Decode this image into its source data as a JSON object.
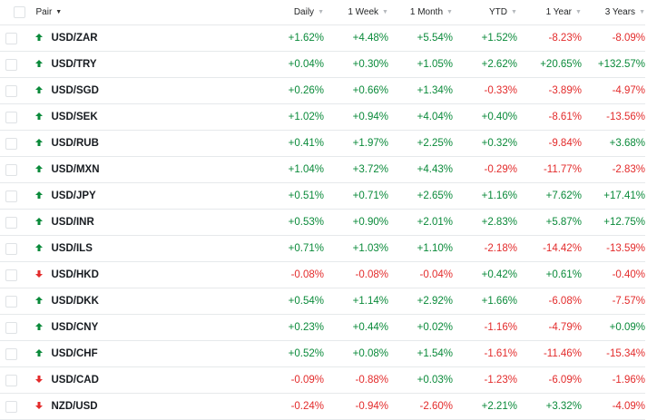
{
  "colors": {
    "positive": "#0a8a3a",
    "negative": "#e32b2b"
  },
  "header": {
    "pair": "Pair",
    "daily": "Daily",
    "week": "1 Week",
    "month": "1 Month",
    "ytd": "YTD",
    "year": "1 Year",
    "three_years": "3 Years"
  },
  "rows": [
    {
      "pair": "USD/ZAR",
      "direction": "up",
      "daily": "+1.62%",
      "week": "+4.48%",
      "month": "+5.54%",
      "ytd": "+1.52%",
      "year": "-8.23%",
      "three_years": "-8.09%"
    },
    {
      "pair": "USD/TRY",
      "direction": "up",
      "daily": "+0.04%",
      "week": "+0.30%",
      "month": "+1.05%",
      "ytd": "+2.62%",
      "year": "+20.65%",
      "three_years": "+132.57%"
    },
    {
      "pair": "USD/SGD",
      "direction": "up",
      "daily": "+0.26%",
      "week": "+0.66%",
      "month": "+1.34%",
      "ytd": "-0.33%",
      "year": "-3.89%",
      "three_years": "-4.97%"
    },
    {
      "pair": "USD/SEK",
      "direction": "up",
      "daily": "+1.02%",
      "week": "+0.94%",
      "month": "+4.04%",
      "ytd": "+0.40%",
      "year": "-8.61%",
      "three_years": "-13.56%"
    },
    {
      "pair": "USD/RUB",
      "direction": "up",
      "daily": "+0.41%",
      "week": "+1.97%",
      "month": "+2.25%",
      "ytd": "+0.32%",
      "year": "-9.84%",
      "three_years": "+3.68%"
    },
    {
      "pair": "USD/MXN",
      "direction": "up",
      "daily": "+1.04%",
      "week": "+3.72%",
      "month": "+4.43%",
      "ytd": "-0.29%",
      "year": "-11.77%",
      "three_years": "-2.83%"
    },
    {
      "pair": "USD/JPY",
      "direction": "up",
      "daily": "+0.51%",
      "week": "+0.71%",
      "month": "+2.65%",
      "ytd": "+1.16%",
      "year": "+7.62%",
      "three_years": "+17.41%"
    },
    {
      "pair": "USD/INR",
      "direction": "up",
      "daily": "+0.53%",
      "week": "+0.90%",
      "month": "+2.01%",
      "ytd": "+2.83%",
      "year": "+5.87%",
      "three_years": "+12.75%"
    },
    {
      "pair": "USD/ILS",
      "direction": "up",
      "daily": "+0.71%",
      "week": "+1.03%",
      "month": "+1.10%",
      "ytd": "-2.18%",
      "year": "-14.42%",
      "three_years": "-13.59%"
    },
    {
      "pair": "USD/HKD",
      "direction": "down",
      "daily": "-0.08%",
      "week": "-0.08%",
      "month": "-0.04%",
      "ytd": "+0.42%",
      "year": "+0.61%",
      "three_years": "-0.40%"
    },
    {
      "pair": "USD/DKK",
      "direction": "up",
      "daily": "+0.54%",
      "week": "+1.14%",
      "month": "+2.92%",
      "ytd": "+1.66%",
      "year": "-6.08%",
      "three_years": "-7.57%"
    },
    {
      "pair": "USD/CNY",
      "direction": "up",
      "daily": "+0.23%",
      "week": "+0.44%",
      "month": "+0.02%",
      "ytd": "-1.16%",
      "year": "-4.79%",
      "three_years": "+0.09%"
    },
    {
      "pair": "USD/CHF",
      "direction": "up",
      "daily": "+0.52%",
      "week": "+0.08%",
      "month": "+1.54%",
      "ytd": "-1.61%",
      "year": "-11.46%",
      "three_years": "-15.34%"
    },
    {
      "pair": "USD/CAD",
      "direction": "down",
      "daily": "-0.09%",
      "week": "-0.88%",
      "month": "+0.03%",
      "ytd": "-1.23%",
      "year": "-6.09%",
      "three_years": "-1.96%"
    },
    {
      "pair": "NZD/USD",
      "direction": "down",
      "daily": "-0.24%",
      "week": "-0.94%",
      "month": "-2.60%",
      "ytd": "+2.21%",
      "year": "+3.32%",
      "three_years": "-4.09%"
    }
  ]
}
